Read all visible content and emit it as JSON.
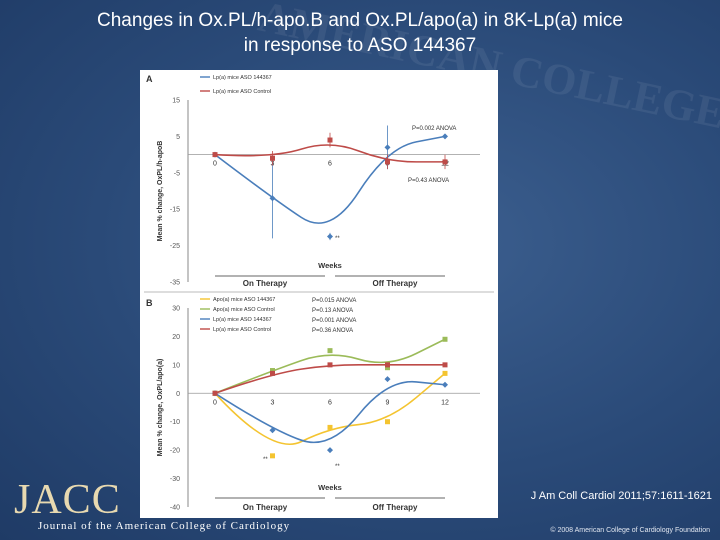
{
  "title": {
    "line1": "Changes in Ox.PL/h-apo.B and Ox.PL/apo(a) in 8K-Lp(a) mice",
    "line2": "in response to ASO 144367"
  },
  "citation": "J Am Coll Cardiol 2011;57:1611-1621",
  "branding": {
    "logo": "JACC",
    "journal": "Journal of the American College of Cardiology",
    "copyright": "© 2008 American College of Cardiology Foundation",
    "watermark": "AMERICAN COLLEGE OF CARDIOLOGY"
  },
  "colors": {
    "blue": "#4a7ebb",
    "red": "#be4b48",
    "yellow": "#f4c430",
    "green": "#9bbb59",
    "axis": "#888888",
    "text": "#333333"
  },
  "chart_data": [
    {
      "panel_label": "A",
      "type": "line",
      "x": [
        0,
        3,
        6,
        9,
        12
      ],
      "x_tick_labels": [
        "0",
        "3",
        "6",
        "9",
        "12"
      ],
      "xlabel": "Weeks",
      "ylabel": "Mean % change, OxPL/h-apoB",
      "ylim": [
        -35,
        15
      ],
      "y_ticks": [
        15,
        5,
        -5,
        -15,
        -25,
        -35
      ],
      "series": [
        {
          "name": "Lp(a) mice ASO 144367",
          "color": "#4a7ebb",
          "values": [
            0,
            -12,
            -22.5,
            2,
            5
          ],
          "errors": [
            0,
            11,
            1,
            6,
            0
          ]
        },
        {
          "name": "Lp(a) mice ASO Control",
          "color": "#be4b48",
          "values": [
            0,
            -1,
            4,
            -2,
            -2
          ],
          "errors": [
            0,
            2,
            2,
            2,
            2
          ]
        }
      ],
      "annotations": [
        "P=0.002 ANOVA",
        "P=0.43 ANOVA",
        "**"
      ],
      "periods": [
        "On Therapy",
        "Off Therapy"
      ]
    },
    {
      "panel_label": "B",
      "type": "line",
      "x": [
        0,
        3,
        6,
        9,
        12
      ],
      "x_tick_labels": [
        "0",
        "3",
        "6",
        "9",
        "12"
      ],
      "xlabel": "Weeks",
      "ylabel": "Mean % change, OxPL/apo(a)",
      "ylim": [
        -40,
        30
      ],
      "y_ticks": [
        30,
        20,
        10,
        0,
        -10,
        -20,
        -30,
        -40
      ],
      "series": [
        {
          "name": "Apo(a) mice ASO 144367",
          "color": "#f4c430",
          "values": [
            0,
            -22,
            -12,
            -10,
            7
          ]
        },
        {
          "name": "Apo(a) mice ASO Control",
          "color": "#9bbb59",
          "values": [
            0,
            8,
            15,
            9,
            19
          ]
        },
        {
          "name": "Lp(a) mice ASO 144367",
          "color": "#4a7ebb",
          "values": [
            0,
            -13,
            -20,
            5,
            3
          ]
        },
        {
          "name": "Lp(a) mice ASO Control",
          "color": "#be4b48",
          "values": [
            0,
            7,
            10,
            10,
            10
          ]
        }
      ],
      "annotations": [
        "P=0.015 ANOVA",
        "P=0.13 ANOVA",
        "P=0.001 ANOVA",
        "P=0.36 ANOVA",
        "**",
        "**"
      ],
      "periods": [
        "On Therapy",
        "Off Therapy"
      ]
    }
  ]
}
